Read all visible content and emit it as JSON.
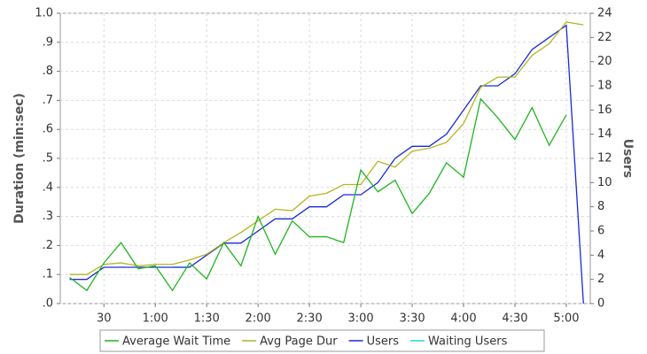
{
  "chart_data": {
    "type": "line",
    "y_label": "Duration (min:sec)",
    "y2_label": "Users",
    "x": [
      10,
      20,
      30,
      40,
      50,
      60,
      70,
      80,
      90,
      100,
      110,
      120,
      130,
      140,
      150,
      160,
      170,
      180,
      190,
      200,
      210,
      220,
      230,
      240,
      250,
      260,
      270,
      280,
      290,
      300,
      310
    ],
    "xlim": [
      4.5,
      314
    ],
    "xticks": [
      30,
      {
        "value": 60,
        "label": "1:00"
      },
      {
        "value": 90,
        "label": "1:30"
      },
      {
        "value": 120,
        "label": "2:00"
      },
      {
        "value": 150,
        "label": "2:30"
      },
      {
        "value": 180,
        "label": "3:00"
      },
      {
        "value": 210,
        "label": "3:30"
      },
      {
        "value": 240,
        "label": "4:00"
      },
      {
        "value": 270,
        "label": "4:30"
      },
      {
        "value": 300,
        "label": "5:00"
      }
    ],
    "ylim": [
      0,
      1
    ],
    "yticks": [
      {
        "value": 0,
        "label": ".0"
      },
      {
        "value": 0.1,
        "label": ".1"
      },
      {
        "value": 0.2,
        "label": ".2"
      },
      {
        "value": 0.3,
        "label": ".3"
      },
      {
        "value": 0.4,
        "label": ".4"
      },
      {
        "value": 0.5,
        "label": ".5"
      },
      {
        "value": 0.6,
        "label": ".6"
      },
      {
        "value": 0.7,
        "label": ".7"
      },
      {
        "value": 0.8,
        "label": ".8"
      },
      {
        "value": 0.9,
        "label": ".9"
      },
      {
        "value": 1,
        "label": "1.0"
      }
    ],
    "y2lim": [
      0,
      24
    ],
    "y2ticks": [
      0,
      2,
      4,
      6,
      8,
      10,
      12,
      14,
      16,
      18,
      20,
      22,
      24
    ],
    "grid": true,
    "legend": "bottom",
    "series": [
      {
        "name": "Average Wait Time",
        "color": "#22b422",
        "values": [
          0.09,
          0.045,
          0.14,
          0.21,
          0.12,
          0.13,
          0.045,
          0.14,
          0.085,
          0.21,
          0.13,
          0.3,
          0.17,
          0.285,
          0.23,
          0.23,
          0.21,
          0.46,
          0.385,
          0.425,
          0.31,
          0.38,
          0.485,
          0.435,
          0.705,
          0.64,
          0.565,
          0.675,
          0.545,
          0.65,
          null
        ]
      },
      {
        "name": "Avg Page Dur",
        "color": "#b4b422",
        "values": [
          0.1,
          0.1,
          0.135,
          0.14,
          0.13,
          0.135,
          0.135,
          0.15,
          0.17,
          0.21,
          0.245,
          0.285,
          0.325,
          0.32,
          0.37,
          0.38,
          0.41,
          0.41,
          0.49,
          0.47,
          0.525,
          0.535,
          0.555,
          0.62,
          0.745,
          0.78,
          0.78,
          0.855,
          0.895,
          0.97,
          0.96
        ]
      },
      {
        "name": "Users",
        "color": "#1a2ad6",
        "axis": "y2",
        "values": [
          2,
          2,
          3,
          3,
          3,
          3,
          3,
          3,
          4,
          5,
          5,
          6,
          7,
          7,
          8,
          8,
          9,
          9,
          10,
          12,
          13,
          13,
          14,
          16,
          18,
          18,
          19,
          21,
          22,
          23,
          0
        ]
      },
      {
        "name": "Waiting Users",
        "color": "#22d6d6",
        "axis": "y2",
        "values": [
          null,
          null,
          null,
          null,
          null,
          null,
          3,
          3,
          null,
          null,
          null,
          null,
          null,
          null,
          null,
          null,
          null,
          null,
          null,
          null,
          null,
          null,
          null,
          null,
          null,
          null,
          null,
          null,
          null,
          null,
          null
        ]
      }
    ]
  }
}
